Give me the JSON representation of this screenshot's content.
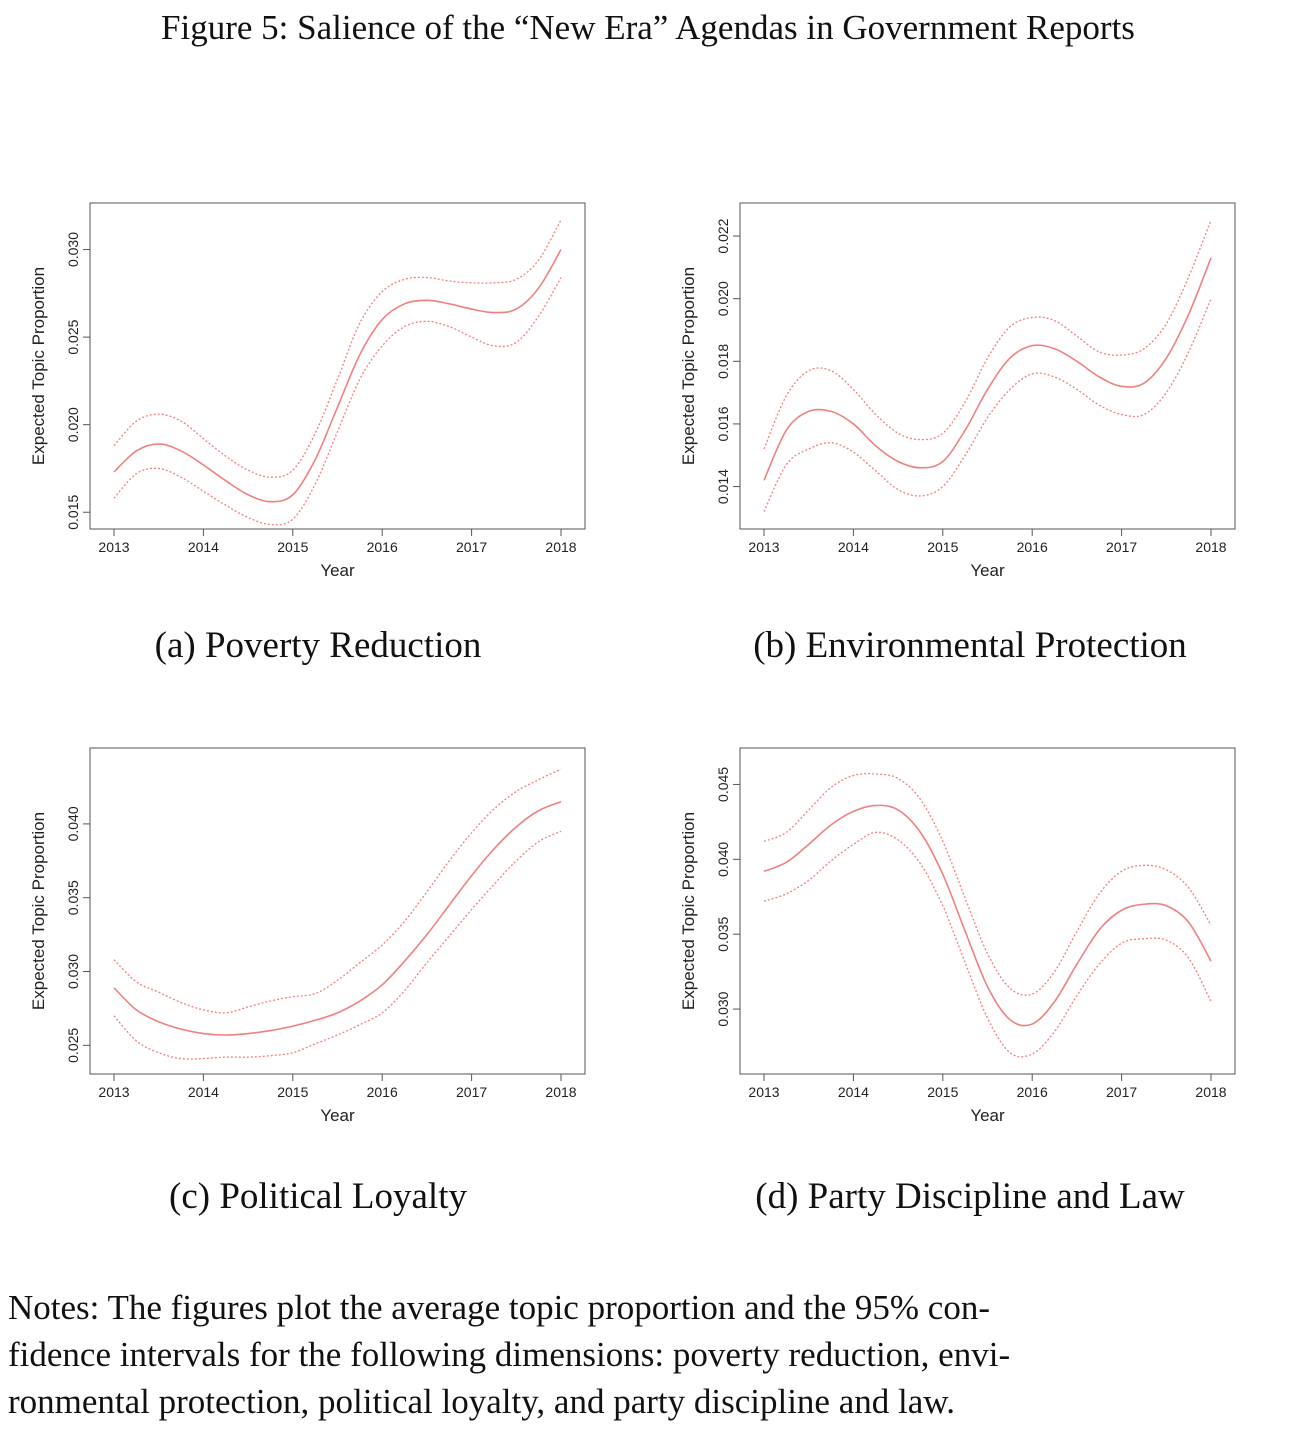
{
  "figure": {
    "title": "Figure 5: Salience of the “New Era” Agendas in Government Reports",
    "notes_lines": [
      "Notes: The figures plot the average topic proportion and the 95% con-",
      "fidence intervals for the following dimensions: poverty reduction, envi-",
      "ronmental protection, political loyalty, and party discipline and law."
    ]
  },
  "colors": {
    "line": "#f08080",
    "frame": "#555555"
  },
  "chart_data": [
    {
      "type": "line",
      "caption": "(a) Poverty Reduction",
      "xlabel": "Year",
      "ylabel": "Expected Topic Proportion",
      "xlim": [
        2013,
        2018
      ],
      "ylim": [
        0.0145,
        0.0322
      ],
      "xticks": [
        "2013",
        "2014",
        "2015",
        "2016",
        "2017",
        "2018"
      ],
      "yticks": [
        "0.015",
        "0.020",
        "0.025",
        "0.030"
      ],
      "x": [
        2013,
        2013.25,
        2013.5,
        2013.75,
        2014,
        2014.25,
        2014.5,
        2014.75,
        2015,
        2015.25,
        2015.5,
        2015.75,
        2016,
        2016.25,
        2016.5,
        2016.75,
        2017,
        2017.25,
        2017.5,
        2017.75,
        2018
      ],
      "series": [
        {
          "role": "estimate",
          "values": [
            0.0173,
            0.0185,
            0.0189,
            0.0185,
            0.0177,
            0.0168,
            0.016,
            0.0156,
            0.016,
            0.018,
            0.021,
            0.024,
            0.026,
            0.0269,
            0.0271,
            0.0269,
            0.0266,
            0.0264,
            0.0266,
            0.0278,
            0.03
          ]
        },
        {
          "role": "upper",
          "values": [
            0.0188,
            0.0202,
            0.0206,
            0.0202,
            0.0192,
            0.0182,
            0.0174,
            0.017,
            0.0174,
            0.0195,
            0.0226,
            0.0258,
            0.0276,
            0.0283,
            0.0284,
            0.0282,
            0.0281,
            0.0281,
            0.0283,
            0.0294,
            0.0317
          ]
        },
        {
          "role": "lower",
          "values": [
            0.0158,
            0.0172,
            0.0175,
            0.017,
            0.0162,
            0.0154,
            0.0147,
            0.0143,
            0.0146,
            0.0166,
            0.0196,
            0.0226,
            0.0245,
            0.0256,
            0.0259,
            0.0256,
            0.025,
            0.0245,
            0.0247,
            0.0262,
            0.0284
          ]
        }
      ]
    },
    {
      "type": "line",
      "caption": "(b) Environmental Protection",
      "xlabel": "Year",
      "ylabel": "Expected Topic Proportion",
      "xlim": [
        2013,
        2018
      ],
      "ylim": [
        0.0129,
        0.0228
      ],
      "xticks": [
        "2013",
        "2014",
        "2015",
        "2016",
        "2017",
        "2018"
      ],
      "yticks": [
        "0.014",
        "0.016",
        "0.018",
        "0.020",
        "0.022"
      ],
      "x": [
        2013,
        2013.25,
        2013.5,
        2013.75,
        2014,
        2014.25,
        2014.5,
        2014.75,
        2015,
        2015.25,
        2015.5,
        2015.75,
        2016,
        2016.25,
        2016.5,
        2016.75,
        2017,
        2017.25,
        2017.5,
        2017.75,
        2018
      ],
      "series": [
        {
          "role": "estimate",
          "values": [
            0.0142,
            0.0158,
            0.0164,
            0.0164,
            0.016,
            0.0153,
            0.0148,
            0.0146,
            0.0148,
            0.0158,
            0.0171,
            0.0181,
            0.0185,
            0.0184,
            0.018,
            0.0175,
            0.0172,
            0.0173,
            0.0181,
            0.0195,
            0.0213
          ]
        },
        {
          "role": "upper",
          "values": [
            0.0152,
            0.0169,
            0.0177,
            0.0177,
            0.0171,
            0.0163,
            0.0157,
            0.0155,
            0.0157,
            0.0167,
            0.0181,
            0.0191,
            0.0194,
            0.0193,
            0.0188,
            0.0183,
            0.0182,
            0.0184,
            0.0192,
            0.0207,
            0.0225
          ]
        },
        {
          "role": "lower",
          "values": [
            0.0132,
            0.0147,
            0.0152,
            0.0154,
            0.0151,
            0.0145,
            0.0139,
            0.0137,
            0.014,
            0.015,
            0.0162,
            0.0171,
            0.0176,
            0.0175,
            0.0171,
            0.0166,
            0.0163,
            0.0163,
            0.017,
            0.0183,
            0.02
          ]
        }
      ]
    },
    {
      "type": "line",
      "caption": "(c) Political Loyalty",
      "xlabel": "Year",
      "ylabel": "Expected Topic Proportion",
      "xlim": [
        2013,
        2018
      ],
      "ylim": [
        0.0236,
        0.0446
      ],
      "xticks": [
        "2013",
        "2014",
        "2015",
        "2016",
        "2017",
        "2018"
      ],
      "yticks": [
        "0.025",
        "0.030",
        "0.035",
        "0.040"
      ],
      "x": [
        2013,
        2013.25,
        2013.5,
        2013.75,
        2014,
        2014.25,
        2014.5,
        2014.75,
        2015,
        2015.25,
        2015.5,
        2015.75,
        2016,
        2016.25,
        2016.5,
        2016.75,
        2017,
        2017.25,
        2017.5,
        2017.75,
        2018
      ],
      "series": [
        {
          "role": "estimate",
          "values": [
            0.0289,
            0.0274,
            0.0266,
            0.0261,
            0.0258,
            0.0257,
            0.0258,
            0.026,
            0.0263,
            0.0267,
            0.0272,
            0.028,
            0.0291,
            0.0307,
            0.0325,
            0.0345,
            0.0365,
            0.0383,
            0.0398,
            0.0409,
            0.0415
          ]
        },
        {
          "role": "upper",
          "values": [
            0.0308,
            0.0293,
            0.0286,
            0.0279,
            0.0274,
            0.0272,
            0.0276,
            0.028,
            0.0283,
            0.0285,
            0.0294,
            0.0306,
            0.0318,
            0.0334,
            0.0354,
            0.0375,
            0.0394,
            0.041,
            0.0422,
            0.043,
            0.0437
          ]
        },
        {
          "role": "lower",
          "values": [
            0.027,
            0.0253,
            0.0245,
            0.0241,
            0.0241,
            0.0242,
            0.0242,
            0.0243,
            0.0245,
            0.0251,
            0.0257,
            0.0264,
            0.0272,
            0.0287,
            0.0306,
            0.0324,
            0.0342,
            0.0359,
            0.0375,
            0.0388,
            0.0395
          ]
        }
      ]
    },
    {
      "type": "line",
      "caption": "(d) Party Discipline and Law",
      "xlabel": "Year",
      "ylabel": "Expected Topic Proportion",
      "xlim": [
        2013,
        2018
      ],
      "ylim": [
        0.0262,
        0.0469
      ],
      "xticks": [
        "2013",
        "2014",
        "2015",
        "2016",
        "2017",
        "2018"
      ],
      "yticks": [
        "0.030",
        "0.035",
        "0.040",
        "0.045"
      ],
      "x": [
        2013,
        2013.25,
        2013.5,
        2013.75,
        2014,
        2014.25,
        2014.5,
        2014.75,
        2015,
        2015.25,
        2015.5,
        2015.75,
        2016,
        2016.25,
        2016.5,
        2016.75,
        2017,
        2017.25,
        2017.5,
        2017.75,
        2018
      ],
      "series": [
        {
          "role": "estimate",
          "values": [
            0.0392,
            0.0398,
            0.041,
            0.0423,
            0.0432,
            0.0436,
            0.0433,
            0.0418,
            0.039,
            0.0352,
            0.0315,
            0.0293,
            0.029,
            0.0305,
            0.033,
            0.0353,
            0.0366,
            0.037,
            0.0369,
            0.0358,
            0.0332
          ]
        },
        {
          "role": "upper",
          "values": [
            0.0412,
            0.0418,
            0.0433,
            0.0448,
            0.0456,
            0.0457,
            0.0454,
            0.044,
            0.0412,
            0.0374,
            0.0337,
            0.0314,
            0.031,
            0.0325,
            0.0352,
            0.0377,
            0.0392,
            0.0396,
            0.0393,
            0.0381,
            0.0356
          ]
        },
        {
          "role": "lower",
          "values": [
            0.0372,
            0.0377,
            0.0386,
            0.0399,
            0.041,
            0.0418,
            0.0413,
            0.0397,
            0.0369,
            0.0331,
            0.0294,
            0.0271,
            0.027,
            0.0285,
            0.0309,
            0.033,
            0.0344,
            0.0347,
            0.0346,
            0.0334,
            0.0305
          ]
        }
      ]
    }
  ]
}
